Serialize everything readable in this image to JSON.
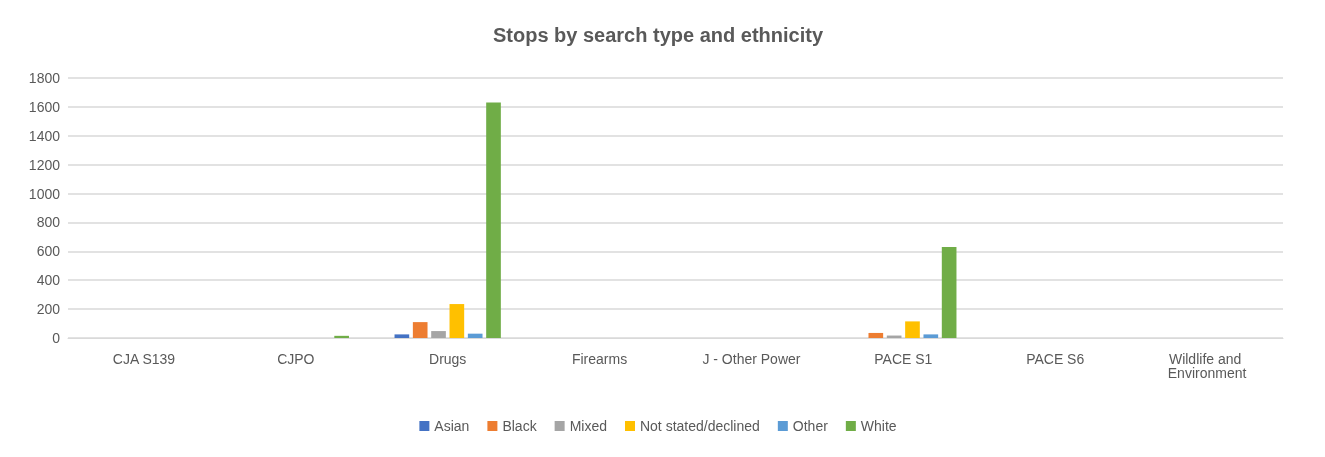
{
  "chart_data": {
    "type": "bar",
    "title": "Stops by search type and ethnicity",
    "categories": [
      "CJA S139",
      "CJPO",
      "Drugs",
      "Firearms",
      "J - Other Power",
      "PACE S1",
      "PACE S6",
      "Wildlife and Environment"
    ],
    "series": [
      {
        "name": "Asian",
        "color": "#4472c4",
        "values": [
          0,
          0,
          25,
          0,
          0,
          0,
          0,
          0
        ]
      },
      {
        "name": "Black",
        "color": "#ed7d31",
        "values": [
          0,
          0,
          110,
          0,
          0,
          35,
          0,
          0
        ]
      },
      {
        "name": "Mixed",
        "color": "#a5a5a5",
        "values": [
          0,
          0,
          48,
          0,
          0,
          17,
          0,
          0
        ]
      },
      {
        "name": "Not stated/declined",
        "color": "#ffc000",
        "values": [
          0,
          0,
          235,
          0,
          0,
          115,
          0,
          0
        ]
      },
      {
        "name": "Other",
        "color": "#5b9bd5",
        "values": [
          0,
          0,
          30,
          0,
          0,
          25,
          0,
          0
        ]
      },
      {
        "name": "White",
        "color": "#70ad47",
        "values": [
          0,
          15,
          1630,
          0,
          0,
          630,
          0,
          0
        ]
      }
    ],
    "ylim": [
      0,
      1800
    ],
    "yticks": [
      0,
      200,
      400,
      600,
      800,
      1000,
      1200,
      1400,
      1600,
      1800
    ],
    "grid": "y",
    "legend": "bottom"
  }
}
